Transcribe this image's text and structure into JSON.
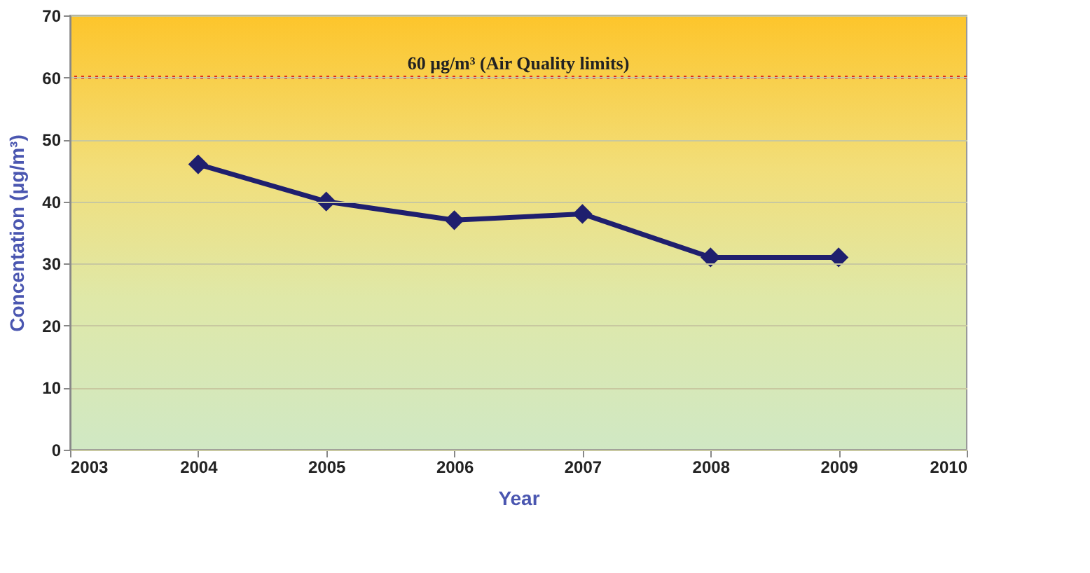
{
  "chart_data": {
    "type": "line",
    "xlabel": "Year",
    "ylabel": "Concentation (μg/m³)",
    "x": [
      2004,
      2005,
      2006,
      2007,
      2008,
      2009
    ],
    "series": [
      {
        "color": "#1f1f6e",
        "values": [
          46,
          40,
          37,
          38,
          31,
          31
        ]
      }
    ],
    "xlim": [
      2003,
      2010
    ],
    "xticks": [
      2003,
      2004,
      2005,
      2006,
      2007,
      2008,
      2009,
      2010
    ],
    "ylim": [
      0,
      70
    ],
    "yticks": [
      0,
      10,
      20,
      30,
      40,
      50,
      60,
      70
    ],
    "ref_lines": [
      {
        "axis": "y",
        "value": 60,
        "label": "60 μg/m³ (Air Quality limits)",
        "color": "#e02a1a",
        "line_style": "dotted"
      }
    ],
    "grid": "y",
    "marker": "diamond",
    "line_style": "solid"
  }
}
